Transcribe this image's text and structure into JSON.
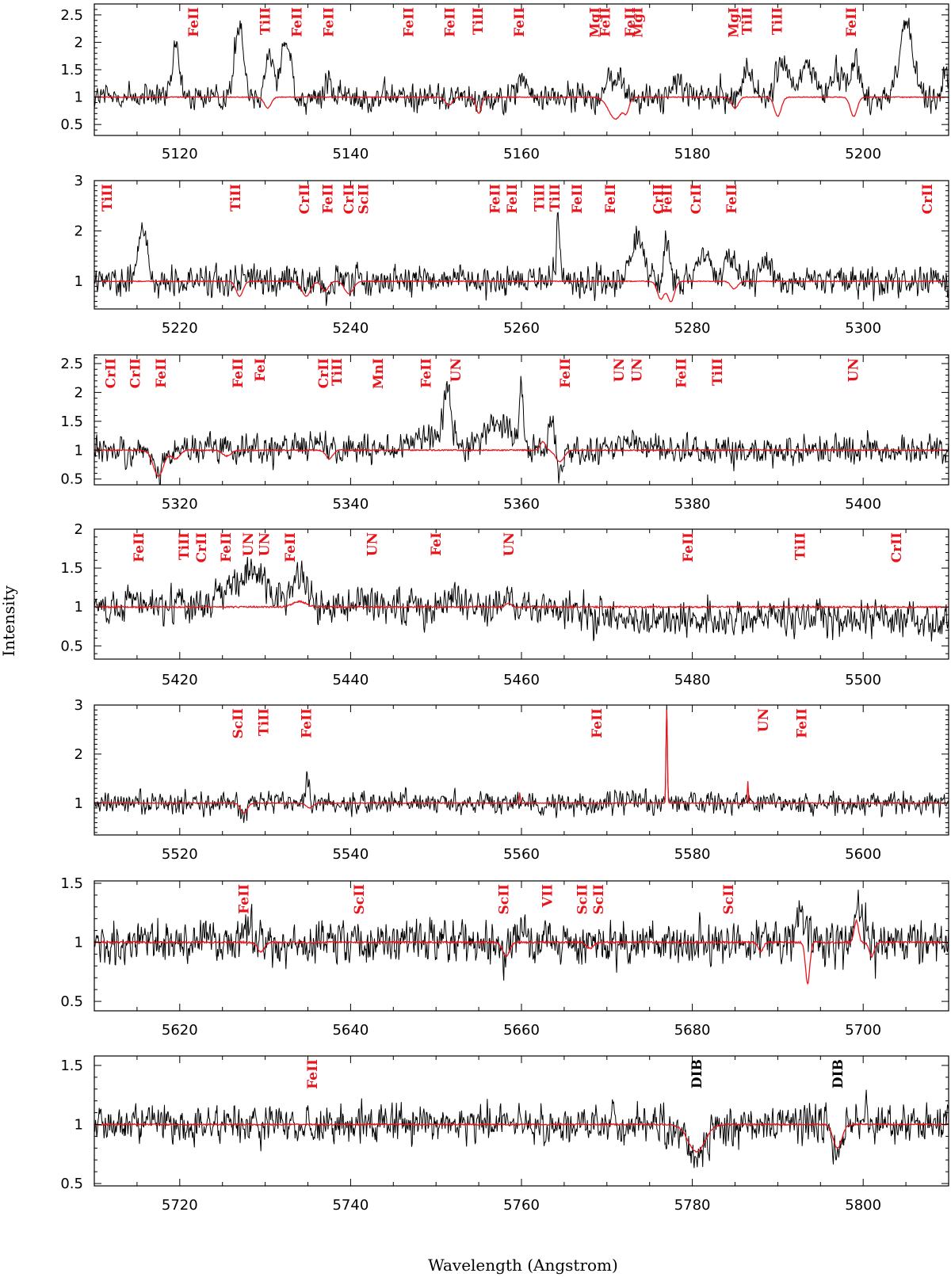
{
  "chart_data": {
    "type": "line",
    "xlabel": "Wavelength (Angstrom)",
    "ylabel": "Intensity",
    "grid": false,
    "colors": {
      "observed": "#000000",
      "model": "#e8141b",
      "dib_label": "#000000"
    },
    "series": [
      {
        "key": "observed",
        "note": "black noisy observed spectrum"
      },
      {
        "key": "model",
        "note": "red smooth model spectrum"
      }
    ],
    "panels": [
      {
        "xlim": [
          5110,
          5210
        ],
        "ylim": [
          0.3,
          2.7
        ],
        "xticks": [
          5120,
          5140,
          5160,
          5180,
          5200
        ],
        "yticks": [
          0.5,
          1,
          1.5,
          2,
          2.5
        ],
        "yticklabels": [
          "0.5",
          "1",
          "1.5",
          "2",
          "2.5"
        ],
        "lines": [
          {
            "x": 5121.6,
            "label": "FeII"
          },
          {
            "x": 5130.0,
            "label": "TiII"
          },
          {
            "x": 5133.7,
            "label": "FeII"
          },
          {
            "x": 5137.4,
            "label": "FeII"
          },
          {
            "x": 5146.8,
            "label": "FeII"
          },
          {
            "x": 5151.6,
            "label": "FeII"
          },
          {
            "x": 5154.9,
            "label": "TiII"
          },
          {
            "x": 5159.7,
            "label": "FeII"
          },
          {
            "x": 5168.6,
            "label": "MgI"
          },
          {
            "x": 5169.8,
            "label": "FeII"
          },
          {
            "x": 5172.7,
            "label": "FeII"
          },
          {
            "x": 5173.6,
            "label": "MgI"
          },
          {
            "x": 5184.8,
            "label": "MgI"
          },
          {
            "x": 5186.4,
            "label": "TiII"
          },
          {
            "x": 5189.9,
            "label": "TiII"
          },
          {
            "x": 5198.6,
            "label": "FeII"
          }
        ],
        "observed_features": [
          [
            5119.5,
            0.9,
            0.4
          ],
          [
            5127.0,
            1.4,
            0.5
          ],
          [
            5130.5,
            0.8,
            0.5
          ],
          [
            5132.2,
            1.0,
            0.4
          ],
          [
            5133.0,
            0.6,
            0.3
          ],
          [
            5137.5,
            0.4,
            0.3
          ],
          [
            5160.0,
            0.4,
            0.4
          ],
          [
            5171.0,
            0.4,
            0.8
          ],
          [
            5178.5,
            0.3,
            0.6
          ],
          [
            5186.5,
            0.5,
            0.6
          ],
          [
            5190.5,
            0.7,
            0.6
          ],
          [
            5193.5,
            0.6,
            0.8
          ],
          [
            5197.0,
            0.5,
            0.7
          ],
          [
            5199.0,
            0.7,
            0.5
          ],
          [
            5205.0,
            1.3,
            0.8
          ],
          [
            5209.7,
            0.5,
            0.3
          ]
        ],
        "model_features": [
          [
            5130.3,
            -0.2,
            0.4
          ],
          [
            5151.5,
            -0.15,
            0.4
          ],
          [
            5155.0,
            -0.3,
            0.3
          ],
          [
            5171.0,
            -0.4,
            0.8
          ],
          [
            5172.3,
            -0.2,
            0.3
          ],
          [
            5185.0,
            -0.2,
            0.4
          ],
          [
            5190.0,
            -0.35,
            0.4
          ],
          [
            5198.9,
            -0.35,
            0.4
          ]
        ],
        "noise": 0.18,
        "model_noise": 0.008
      },
      {
        "xlim": [
          5210,
          5310
        ],
        "ylim": [
          0.45,
          3.0
        ],
        "xticks": [
          5220,
          5240,
          5260,
          5280,
          5300
        ],
        "yticks": [
          1,
          2,
          3
        ],
        "yticklabels": [
          "1",
          "2",
          "3"
        ],
        "lines": [
          {
            "x": 5211.5,
            "label": "TiII"
          },
          {
            "x": 5226.5,
            "label": "TiII"
          },
          {
            "x": 5234.6,
            "label": "CrII"
          },
          {
            "x": 5237.3,
            "label": "FeII"
          },
          {
            "x": 5239.8,
            "label": "CrII"
          },
          {
            "x": 5241.5,
            "label": "ScII"
          },
          {
            "x": 5256.9,
            "label": "FeII"
          },
          {
            "x": 5258.9,
            "label": "FeII"
          },
          {
            "x": 5262.1,
            "label": "TiII"
          },
          {
            "x": 5263.9,
            "label": "TiII"
          },
          {
            "x": 5266.5,
            "label": "FeII"
          },
          {
            "x": 5270.4,
            "label": "FeII"
          },
          {
            "x": 5276.0,
            "label": "CrII"
          },
          {
            "x": 5277.0,
            "label": "FeII"
          },
          {
            "x": 5280.4,
            "label": "CrII"
          },
          {
            "x": 5284.6,
            "label": "FeII"
          },
          {
            "x": 5307.5,
            "label": "CrII"
          }
        ],
        "observed_features": [
          [
            5215.5,
            0.85,
            0.6
          ],
          [
            5237.5,
            -0.3,
            0.5
          ],
          [
            5264.3,
            1.3,
            0.15
          ],
          [
            5273.5,
            0.8,
            0.8
          ],
          [
            5277.0,
            0.9,
            0.3
          ],
          [
            5281.5,
            0.5,
            0.8
          ],
          [
            5284.5,
            0.6,
            0.5
          ],
          [
            5288.5,
            0.4,
            0.7
          ]
        ],
        "model_features": [
          [
            5227.0,
            -0.3,
            0.4
          ],
          [
            5234.8,
            -0.3,
            0.5
          ],
          [
            5237.0,
            -0.2,
            0.4
          ],
          [
            5239.8,
            -0.25,
            0.5
          ],
          [
            5276.3,
            -0.35,
            0.4
          ],
          [
            5277.5,
            -0.4,
            0.4
          ],
          [
            5284.9,
            -0.15,
            0.4
          ]
        ],
        "noise": 0.2,
        "model_noise": 0.008
      },
      {
        "xlim": [
          5310,
          5410
        ],
        "ylim": [
          0.4,
          2.65
        ],
        "xticks": [
          5320,
          5340,
          5360,
          5380,
          5400
        ],
        "yticks": [
          0.5,
          1,
          1.5,
          2,
          2.5
        ],
        "yticklabels": [
          "0.5",
          "1",
          "1.5",
          "2",
          "2.5"
        ],
        "lines": [
          {
            "x": 5311.9,
            "label": "CrII"
          },
          {
            "x": 5314.8,
            "label": "CrII"
          },
          {
            "x": 5317.8,
            "label": "FeII"
          },
          {
            "x": 5326.8,
            "label": "FeII"
          },
          {
            "x": 5329.4,
            "label": "FeI"
          },
          {
            "x": 5336.8,
            "label": "CrII"
          },
          {
            "x": 5338.4,
            "label": "TiII"
          },
          {
            "x": 5343.2,
            "label": "MnI"
          },
          {
            "x": 5348.8,
            "label": "FeII"
          },
          {
            "x": 5352.3,
            "label": "UN"
          },
          {
            "x": 5365.1,
            "label": "FeII"
          },
          {
            "x": 5371.4,
            "label": "UN"
          },
          {
            "x": 5373.5,
            "label": "UN"
          },
          {
            "x": 5378.7,
            "label": "FeII"
          },
          {
            "x": 5382.9,
            "label": "TiII"
          },
          {
            "x": 5398.8,
            "label": "UN"
          }
        ],
        "observed_features": [
          [
            5317.5,
            -0.4,
            0.6
          ],
          [
            5336.5,
            0.15,
            0.8
          ],
          [
            5350.0,
            0.3,
            2.0
          ],
          [
            5351.3,
            0.9,
            0.4
          ],
          [
            5357.0,
            0.5,
            1.5
          ],
          [
            5360.0,
            1.1,
            0.2
          ],
          [
            5363.5,
            0.55,
            0.3
          ],
          [
            5364.5,
            -0.3,
            0.3
          ],
          [
            5373.0,
            0.3,
            0.6
          ]
        ],
        "model_features": [
          [
            5317.5,
            -0.45,
            0.6
          ],
          [
            5319.5,
            -0.15,
            0.5
          ],
          [
            5325.5,
            -0.1,
            0.5
          ],
          [
            5337.5,
            -0.15,
            0.4
          ],
          [
            5362.5,
            0.15,
            0.3
          ],
          [
            5364.5,
            -0.2,
            0.5
          ]
        ],
        "noise": 0.17,
        "model_noise": 0.01
      },
      {
        "xlim": [
          5410,
          5510
        ],
        "ylim": [
          0.33,
          2.0
        ],
        "xticks": [
          5420,
          5440,
          5460,
          5480,
          5500
        ],
        "yticks": [
          0.5,
          1,
          1.5,
          2
        ],
        "yticklabels": [
          "0.5",
          "1",
          "1.5",
          "2"
        ],
        "lines": [
          {
            "x": 5415.2,
            "label": "FeII"
          },
          {
            "x": 5420.5,
            "label": "TiII"
          },
          {
            "x": 5422.5,
            "label": "CrII"
          },
          {
            "x": 5425.4,
            "label": "FeII"
          },
          {
            "x": 5428.0,
            "label": "UN"
          },
          {
            "x": 5429.9,
            "label": "UN"
          },
          {
            "x": 5432.9,
            "label": "FeII"
          },
          {
            "x": 5442.5,
            "label": "UN"
          },
          {
            "x": 5450.0,
            "label": "FeI"
          },
          {
            "x": 5458.5,
            "label": "UN"
          },
          {
            "x": 5479.5,
            "label": "FeII"
          },
          {
            "x": 5492.6,
            "label": "TiII"
          },
          {
            "x": 5503.9,
            "label": "CrII"
          }
        ],
        "observed_features": [
          [
            5415.0,
            0.1,
            0.6
          ],
          [
            5420.0,
            0.1,
            0.6
          ],
          [
            5426.0,
            0.25,
            1.2
          ],
          [
            5429.0,
            0.5,
            1.2
          ],
          [
            5434.0,
            0.4,
            1.0
          ],
          [
            5441.0,
            0.15,
            0.8
          ],
          [
            5452.0,
            0.2,
            0.6
          ]
        ],
        "trend": [
          [
            5410,
            1.0
          ],
          [
            5460,
            1.0
          ],
          [
            5475,
            0.85
          ],
          [
            5510,
            0.85
          ]
        ],
        "model_features": [
          [
            5434.0,
            0.07,
            0.8
          ],
          [
            5458.5,
            0.05,
            0.3
          ]
        ],
        "noise": 0.15,
        "model_noise": 0.01
      },
      {
        "xlim": [
          5510,
          5610
        ],
        "ylim": [
          0.35,
          3.0
        ],
        "xticks": [
          5520,
          5540,
          5560,
          5580,
          5600
        ],
        "yticks": [
          1,
          2,
          3
        ],
        "yticklabels": [
          "1",
          "2",
          "3"
        ],
        "lines": [
          {
            "x": 5526.8,
            "label": "ScII"
          },
          {
            "x": 5529.8,
            "label": "TiII"
          },
          {
            "x": 5534.8,
            "label": "FeII"
          },
          {
            "x": 5568.8,
            "label": "FeII"
          },
          {
            "x": 5588.3,
            "label": "UN"
          },
          {
            "x": 5592.8,
            "label": "FeII"
          }
        ],
        "observed_features": [
          [
            5527.5,
            -0.3,
            0.4
          ],
          [
            5535.0,
            0.5,
            0.2
          ],
          [
            5577.0,
            2.0,
            0.08
          ]
        ],
        "model_features": [
          [
            5527.5,
            -0.2,
            0.4
          ],
          [
            5535.2,
            -0.1,
            0.4
          ],
          [
            5559.8,
            0.22,
            0.05
          ],
          [
            5577.0,
            1.9,
            0.08
          ],
          [
            5586.5,
            0.45,
            0.06
          ]
        ],
        "noise": 0.15,
        "model_noise": 0.008
      },
      {
        "xlim": [
          5610,
          5710
        ],
        "ylim": [
          0.42,
          1.52
        ],
        "xticks": [
          5620,
          5640,
          5660,
          5680,
          5700
        ],
        "yticks": [
          0.5,
          1,
          1.5
        ],
        "yticklabels": [
          "0.5",
          "1",
          "1.5"
        ],
        "lines": [
          {
            "x": 5627.5,
            "label": "FeII"
          },
          {
            "x": 5641.0,
            "label": "ScII"
          },
          {
            "x": 5657.9,
            "label": "ScII"
          },
          {
            "x": 5663.0,
            "label": "VII"
          },
          {
            "x": 5667.1,
            "label": "ScII"
          },
          {
            "x": 5669.0,
            "label": "ScII"
          },
          {
            "x": 5684.2,
            "label": "ScII"
          }
        ],
        "observed_features": [
          [
            5628.0,
            0.15,
            0.6
          ],
          [
            5658.0,
            -0.15,
            0.4
          ],
          [
            5693.0,
            0.2,
            0.8
          ],
          [
            5699.5,
            0.35,
            0.4
          ]
        ],
        "model_features": [
          [
            5629.5,
            -0.08,
            0.4
          ],
          [
            5658.2,
            -0.12,
            0.4
          ],
          [
            5668.0,
            -0.05,
            0.4
          ],
          [
            5688.0,
            -0.08,
            0.3
          ],
          [
            5693.5,
            -0.35,
            0.25
          ],
          [
            5699.2,
            0.18,
            0.25
          ],
          [
            5701.0,
            -0.12,
            0.3
          ]
        ],
        "noise": 0.13,
        "model_noise": 0.008
      },
      {
        "xlim": [
          5710,
          5810
        ],
        "ylim": [
          0.48,
          1.58
        ],
        "xticks": [
          5720,
          5740,
          5760,
          5780,
          5800
        ],
        "yticks": [
          0.5,
          1,
          1.5
        ],
        "yticklabels": [
          "0.5",
          "1",
          "1.5"
        ],
        "lines": [
          {
            "x": 5735.5,
            "label": "FeII"
          },
          {
            "x": 5780.5,
            "label": "DIB",
            "color": "#000000"
          },
          {
            "x": 5797.0,
            "label": "DIB",
            "color": "#000000"
          }
        ],
        "observed_features": [
          [
            5780.5,
            -0.3,
            1.0
          ],
          [
            5797.0,
            -0.25,
            0.5
          ]
        ],
        "model_features": [
          [
            5780.5,
            -0.23,
            1.0
          ],
          [
            5797.0,
            -0.2,
            0.5
          ]
        ],
        "noise": 0.11,
        "model_noise": 0.006
      }
    ]
  }
}
